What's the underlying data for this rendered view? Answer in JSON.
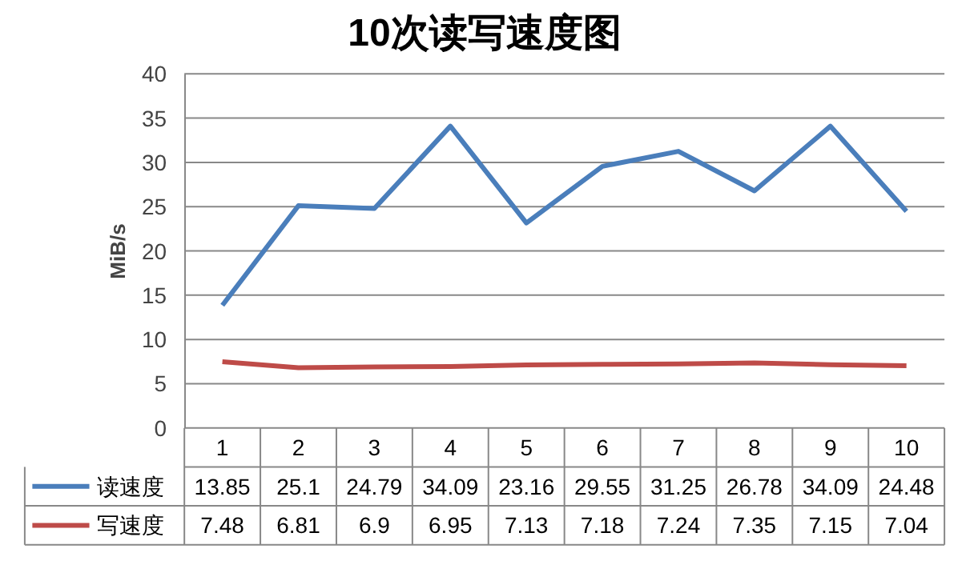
{
  "chart_data": {
    "type": "line",
    "title": "10次读写速度图",
    "ylabel": "MiB/s",
    "categories": [
      "1",
      "2",
      "3",
      "4",
      "5",
      "6",
      "7",
      "8",
      "9",
      "10"
    ],
    "series": [
      {
        "name": "读速度",
        "color": "#4a7ebb",
        "values": [
          13.85,
          25.1,
          24.79,
          34.09,
          23.16,
          29.55,
          31.25,
          26.78,
          34.09,
          24.48
        ]
      },
      {
        "name": "写速度",
        "color": "#be4b48",
        "values": [
          7.48,
          6.81,
          6.9,
          6.95,
          7.13,
          7.18,
          7.24,
          7.35,
          7.15,
          7.04
        ]
      }
    ],
    "ylim": [
      0,
      40
    ],
    "yticks": [
      0,
      5,
      10,
      15,
      20,
      25,
      30,
      35,
      40
    ],
    "grid": "y",
    "legend": "bottom",
    "data_labels": true,
    "marker": "none",
    "line_style": "solid"
  }
}
